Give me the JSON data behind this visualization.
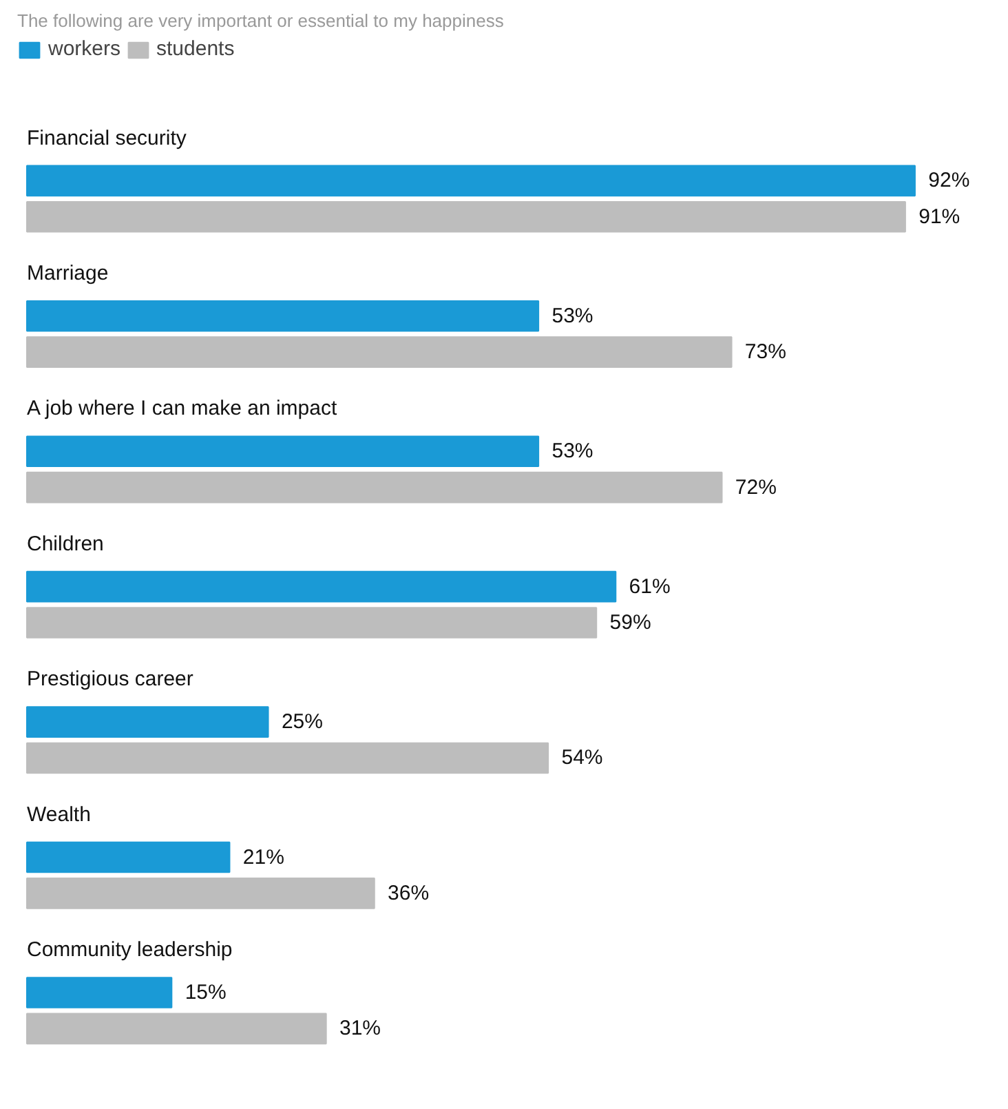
{
  "chart_data": {
    "type": "bar",
    "orientation": "horizontal",
    "title": "The following are very important or essential to my happiness",
    "categories": [
      "Financial security",
      "Marriage",
      "A job where I can make an impact",
      "Children",
      "Prestigious career",
      "Wealth",
      "Community leadership"
    ],
    "series": [
      {
        "name": "workers",
        "color": "#1a9ad6",
        "values": [
          92,
          53,
          53,
          61,
          25,
          21,
          15
        ],
        "value_labels": [
          "92%",
          "53%",
          "53%",
          "61%",
          "25%",
          "21%",
          "15%"
        ]
      },
      {
        "name": "students",
        "color": "#bdbdbd",
        "values": [
          91,
          73,
          72,
          59,
          54,
          36,
          31
        ],
        "value_labels": [
          "91%",
          "73%",
          "72%",
          "59%",
          "54%",
          "36%",
          "31%"
        ]
      }
    ],
    "legend": "top left"
  }
}
